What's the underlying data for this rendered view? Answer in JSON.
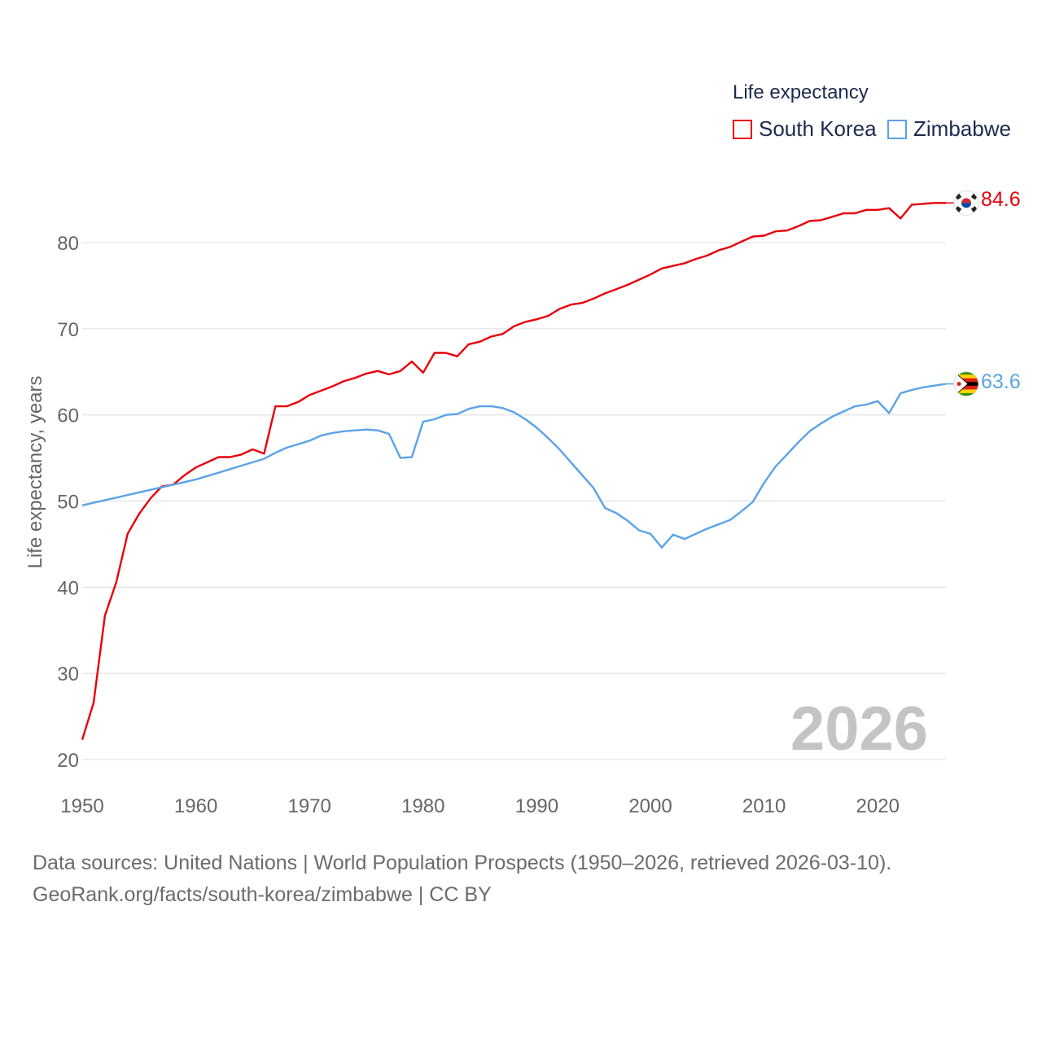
{
  "chart_data": {
    "type": "line",
    "ylabel": "Life expectancy, years",
    "xlim": [
      1950,
      2026
    ],
    "ylim": [
      20,
      85
    ],
    "y_ticks": [
      20,
      30,
      40,
      50,
      60,
      70,
      80
    ],
    "x_ticks": [
      1950,
      1960,
      1970,
      1980,
      1990,
      2000,
      2010,
      2020
    ],
    "grid": true,
    "legend": {
      "title": "Life expectancy",
      "placement": "top-right"
    },
    "highlight_year": "2026",
    "series": [
      {
        "name": "South Korea",
        "color": "#e8000b",
        "end_label": "84.6",
        "flag_icon": "south-korea-flag-icon",
        "points": [
          [
            1950,
            22.3
          ],
          [
            1951,
            26.6
          ],
          [
            1952,
            36.7
          ],
          [
            1953,
            40.6
          ],
          [
            1954,
            46.2
          ],
          [
            1955,
            48.5
          ],
          [
            1956,
            50.3
          ],
          [
            1957,
            51.7
          ],
          [
            1958,
            51.9
          ],
          [
            1959,
            53.0
          ],
          [
            1960,
            53.9
          ],
          [
            1961,
            54.5
          ],
          [
            1962,
            55.1
          ],
          [
            1963,
            55.1
          ],
          [
            1964,
            55.4
          ],
          [
            1965,
            56.0
          ],
          [
            1966,
            55.5
          ],
          [
            1967,
            61.0
          ],
          [
            1968,
            61.0
          ],
          [
            1969,
            61.5
          ],
          [
            1970,
            62.3
          ],
          [
            1971,
            62.8
          ],
          [
            1972,
            63.3
          ],
          [
            1973,
            63.9
          ],
          [
            1974,
            64.3
          ],
          [
            1975,
            64.8
          ],
          [
            1976,
            65.1
          ],
          [
            1977,
            64.7
          ],
          [
            1978,
            65.1
          ],
          [
            1979,
            66.2
          ],
          [
            1980,
            64.9
          ],
          [
            1981,
            67.2
          ],
          [
            1982,
            67.2
          ],
          [
            1983,
            66.8
          ],
          [
            1984,
            68.2
          ],
          [
            1985,
            68.5
          ],
          [
            1986,
            69.1
          ],
          [
            1987,
            69.4
          ],
          [
            1988,
            70.3
          ],
          [
            1989,
            70.8
          ],
          [
            1990,
            71.1
          ],
          [
            1991,
            71.5
          ],
          [
            1992,
            72.3
          ],
          [
            1993,
            72.8
          ],
          [
            1994,
            73.0
          ],
          [
            1995,
            73.5
          ],
          [
            1996,
            74.1
          ],
          [
            1997,
            74.6
          ],
          [
            1998,
            75.1
          ],
          [
            1999,
            75.7
          ],
          [
            2000,
            76.3
          ],
          [
            2001,
            77.0
          ],
          [
            2002,
            77.3
          ],
          [
            2003,
            77.6
          ],
          [
            2004,
            78.1
          ],
          [
            2005,
            78.5
          ],
          [
            2006,
            79.1
          ],
          [
            2007,
            79.5
          ],
          [
            2008,
            80.1
          ],
          [
            2009,
            80.7
          ],
          [
            2010,
            80.8
          ],
          [
            2011,
            81.3
          ],
          [
            2012,
            81.4
          ],
          [
            2013,
            81.9
          ],
          [
            2014,
            82.5
          ],
          [
            2015,
            82.6
          ],
          [
            2016,
            83.0
          ],
          [
            2017,
            83.4
          ],
          [
            2018,
            83.4
          ],
          [
            2019,
            83.8
          ],
          [
            2020,
            83.8
          ],
          [
            2021,
            84.0
          ],
          [
            2022,
            82.8
          ],
          [
            2023,
            84.4
          ],
          [
            2024,
            84.5
          ],
          [
            2025,
            84.6
          ],
          [
            2026,
            84.6
          ]
        ]
      },
      {
        "name": "Zimbabwe",
        "color": "#5ba3e8",
        "end_label": "63.6",
        "flag_icon": "zimbabwe-flag-icon",
        "points": [
          [
            1950,
            49.5
          ],
          [
            1951,
            49.8
          ],
          [
            1952,
            50.1
          ],
          [
            1953,
            50.4
          ],
          [
            1954,
            50.7
          ],
          [
            1955,
            51.0
          ],
          [
            1956,
            51.3
          ],
          [
            1957,
            51.6
          ],
          [
            1958,
            51.9
          ],
          [
            1959,
            52.2
          ],
          [
            1960,
            52.5
          ],
          [
            1961,
            52.9
          ],
          [
            1962,
            53.3
          ],
          [
            1963,
            53.7
          ],
          [
            1964,
            54.1
          ],
          [
            1965,
            54.5
          ],
          [
            1966,
            54.9
          ],
          [
            1967,
            55.6
          ],
          [
            1968,
            56.2
          ],
          [
            1969,
            56.6
          ],
          [
            1970,
            57.0
          ],
          [
            1971,
            57.6
          ],
          [
            1972,
            57.9
          ],
          [
            1973,
            58.1
          ],
          [
            1974,
            58.2
          ],
          [
            1975,
            58.3
          ],
          [
            1976,
            58.2
          ],
          [
            1977,
            57.8
          ],
          [
            1978,
            55.0
          ],
          [
            1979,
            55.1
          ],
          [
            1980,
            59.2
          ],
          [
            1981,
            59.5
          ],
          [
            1982,
            60.0
          ],
          [
            1983,
            60.1
          ],
          [
            1984,
            60.7
          ],
          [
            1985,
            61.0
          ],
          [
            1986,
            61.0
          ],
          [
            1987,
            60.8
          ],
          [
            1988,
            60.3
          ],
          [
            1989,
            59.5
          ],
          [
            1990,
            58.5
          ],
          [
            1991,
            57.3
          ],
          [
            1992,
            56.0
          ],
          [
            1993,
            54.5
          ],
          [
            1994,
            53.0
          ],
          [
            1995,
            51.5
          ],
          [
            1996,
            49.2
          ],
          [
            1997,
            48.6
          ],
          [
            1998,
            47.7
          ],
          [
            1999,
            46.6
          ],
          [
            2000,
            46.2
          ],
          [
            2001,
            44.6
          ],
          [
            2002,
            46.1
          ],
          [
            2003,
            45.6
          ],
          [
            2004,
            46.2
          ],
          [
            2005,
            46.8
          ],
          [
            2006,
            47.3
          ],
          [
            2007,
            47.8
          ],
          [
            2008,
            48.8
          ],
          [
            2009,
            49.9
          ],
          [
            2010,
            52.1
          ],
          [
            2011,
            54.0
          ],
          [
            2012,
            55.4
          ],
          [
            2013,
            56.8
          ],
          [
            2014,
            58.1
          ],
          [
            2015,
            59.0
          ],
          [
            2016,
            59.8
          ],
          [
            2017,
            60.4
          ],
          [
            2018,
            61.0
          ],
          [
            2019,
            61.2
          ],
          [
            2020,
            61.6
          ],
          [
            2021,
            60.2
          ],
          [
            2022,
            62.5
          ],
          [
            2023,
            62.9
          ],
          [
            2024,
            63.2
          ],
          [
            2025,
            63.4
          ],
          [
            2026,
            63.6
          ]
        ]
      }
    ]
  },
  "footer": {
    "sources": "Data sources: United Nations | World Population Prospects (1950–2026, retrieved 2026-03-10).",
    "attribution": "GeoRank.org/facts/south-korea/zimbabwe | CC BY"
  }
}
